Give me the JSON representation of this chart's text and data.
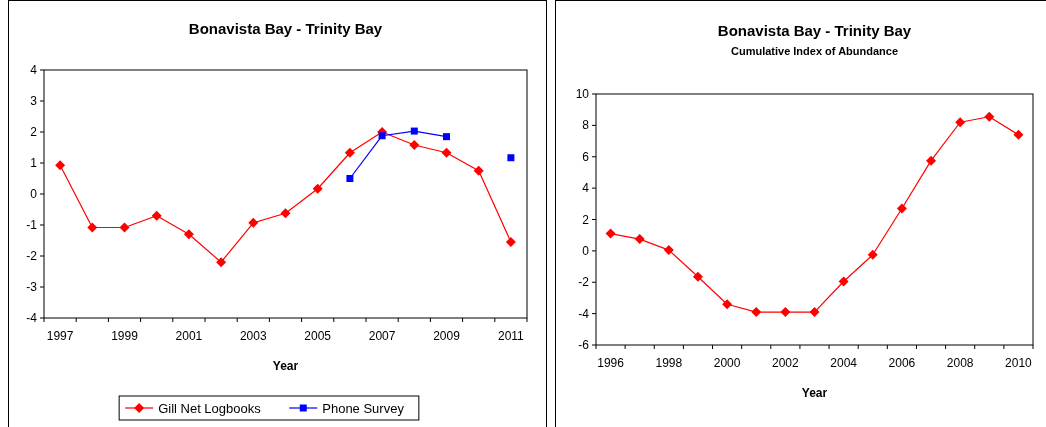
{
  "chart_data": [
    {
      "type": "line",
      "title": "Bonavista Bay - Trinity Bay",
      "xlabel": "Year",
      "categories": [
        "1997",
        null,
        "1999",
        null,
        "2001",
        null,
        "2003",
        null,
        "2005",
        null,
        "2007",
        null,
        "2009",
        null,
        "2011"
      ],
      "ylim": [
        -4,
        4
      ],
      "yticks": [
        -4,
        -3,
        -2,
        -1,
        0,
        1,
        2,
        3,
        4
      ],
      "grid": false,
      "legend": "bottom",
      "series": [
        {
          "name": "Gill Net Logbooks",
          "color": "#ff0000",
          "marker": "diamond",
          "values": [
            0.93,
            -1.08,
            -1.08,
            -0.7,
            -1.3,
            -2.2,
            -0.93,
            -0.62,
            0.17,
            1.33,
            2.0,
            1.58,
            1.33,
            0.75,
            -1.55
          ]
        },
        {
          "name": "Phone Survey",
          "color": "#0000ff",
          "marker": "square",
          "values": [
            null,
            null,
            null,
            null,
            null,
            null,
            null,
            null,
            null,
            0.5,
            1.88,
            2.03,
            1.85,
            null,
            1.17
          ]
        }
      ]
    },
    {
      "type": "line",
      "title": "Bonavista Bay - Trinity Bay",
      "subtitle": "Cumulative Index of Abundance",
      "xlabel": "Year",
      "categories": [
        "1996",
        null,
        "1998",
        null,
        "2000",
        null,
        "2002",
        null,
        "2004",
        null,
        "2006",
        null,
        "2008",
        null,
        "2010"
      ],
      "ylim": [
        -6,
        10
      ],
      "yticks": [
        -6,
        -4,
        -2,
        0,
        2,
        4,
        6,
        8,
        10
      ],
      "grid": false,
      "series": [
        {
          "color": "#ff0000",
          "marker": "diamond",
          "values": [
            1.1,
            0.75,
            0.05,
            -1.65,
            -3.4,
            -3.9,
            -3.9,
            -3.9,
            -1.95,
            -0.25,
            2.7,
            5.75,
            8.2,
            8.55,
            7.4
          ]
        }
      ]
    }
  ]
}
